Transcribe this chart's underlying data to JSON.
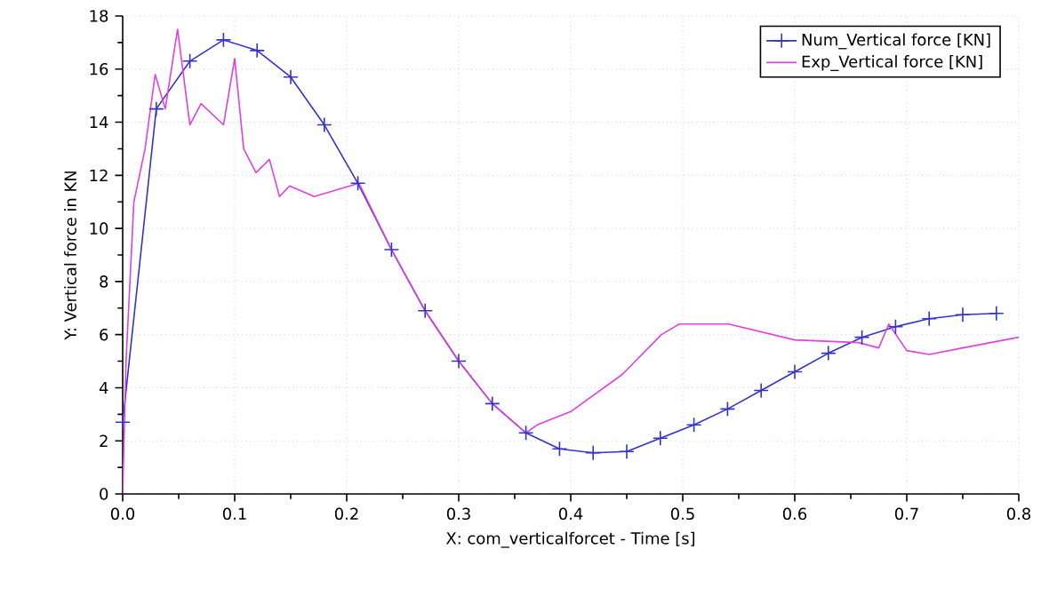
{
  "chart_data": {
    "type": "line",
    "xlabel": "X: com_verticalforcet - Time [s]",
    "ylabel": "Y: Vertical force in KN",
    "xlim": [
      0,
      0.8
    ],
    "ylim": [
      0,
      18
    ],
    "xticks": [
      {
        "value": 0,
        "label": "0.0"
      },
      0.1,
      0.2,
      0.3,
      0.4,
      0.5,
      0.6,
      0.7,
      0.8
    ],
    "yticks": [
      0,
      2,
      4,
      6,
      8,
      10,
      12,
      14,
      16,
      18
    ],
    "grid": true,
    "legend": "top right",
    "series": [
      {
        "name": "Num_Vertical force [KN]",
        "color": "#3333cc",
        "marker": "cross",
        "x": [
          0.0,
          0.03,
          0.06,
          0.09,
          0.12,
          0.15,
          0.18,
          0.21,
          0.24,
          0.27,
          0.3,
          0.33,
          0.36,
          0.39,
          0.42,
          0.45,
          0.48,
          0.51,
          0.54,
          0.57,
          0.6,
          0.63,
          0.66,
          0.69,
          0.72,
          0.75,
          0.78
        ],
        "values": [
          2.7,
          14.5,
          16.3,
          17.1,
          16.7,
          15.7,
          13.9,
          11.7,
          9.2,
          6.9,
          5.0,
          3.4,
          2.3,
          1.7,
          1.55,
          1.6,
          2.1,
          2.6,
          3.2,
          3.9,
          4.6,
          5.3,
          5.9,
          6.3,
          6.6,
          6.75,
          6.8
        ]
      },
      {
        "name": "Exp_Vertical force [KN]",
        "color": "#e040e0",
        "marker": "none",
        "x": [
          0.0,
          0.003,
          0.01,
          0.02,
          0.029,
          0.038,
          0.049,
          0.06,
          0.07,
          0.09,
          0.1,
          0.108,
          0.119,
          0.131,
          0.14,
          0.149,
          0.171,
          0.211,
          0.24,
          0.27,
          0.3,
          0.33,
          0.36,
          0.37,
          0.4,
          0.446,
          0.481,
          0.497,
          0.541,
          0.6,
          0.657,
          0.675,
          0.684,
          0.7,
          0.72,
          0.75,
          0.8
        ],
        "values": [
          0,
          5,
          11,
          13,
          15.8,
          14.5,
          17.5,
          13.9,
          14.7,
          13.9,
          16.4,
          13.0,
          12.1,
          12.6,
          11.2,
          11.6,
          11.2,
          11.7,
          9.2,
          6.9,
          5.0,
          3.4,
          2.3,
          2.6,
          3.1,
          4.5,
          6.0,
          6.4,
          6.4,
          5.8,
          5.7,
          5.5,
          6.4,
          5.4,
          5.25,
          5.5,
          5.9
        ]
      }
    ]
  }
}
